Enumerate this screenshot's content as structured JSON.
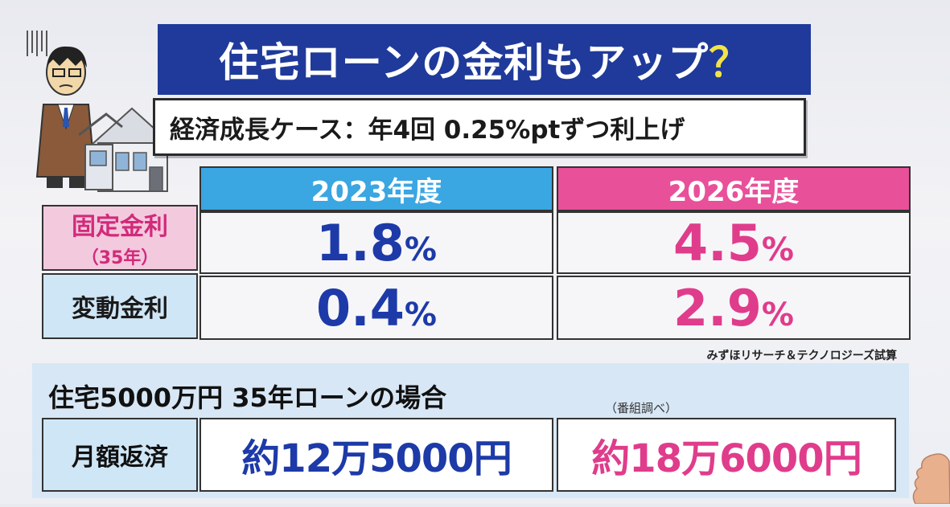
{
  "title": {
    "main": "住宅ローンの金利もアップ",
    "mark": "？"
  },
  "subtitle": "経済成長ケース：年4回 0.25%ptずつ利上げ",
  "table": {
    "headers": [
      "2023年度",
      "2026年度"
    ],
    "rows": [
      {
        "label": "固定金利",
        "sublabel": "（35年）",
        "v2023": "1.8",
        "v2026": "4.5"
      },
      {
        "label": "変動金利",
        "v2023": "0.4",
        "v2026": "2.9"
      }
    ],
    "unit": "%"
  },
  "source": "みずほリサーチ＆テクノロジーズ試算",
  "loan_case": {
    "text": "住宅5000万円 35年ローンの場合",
    "note": "（番組調べ）",
    "label": "月額返済",
    "pay2023": "約12万5000円",
    "pay2026": "約18万6000円"
  },
  "colors": {
    "title_bg": "#1f3a9a",
    "header_2023": "#3aa6e2",
    "header_2026": "#e8509a",
    "value_blue": "#1d3aa8",
    "value_pink": "#e03c8c"
  },
  "icons": [
    "businessman-icon",
    "house-icon",
    "hand-icon"
  ]
}
